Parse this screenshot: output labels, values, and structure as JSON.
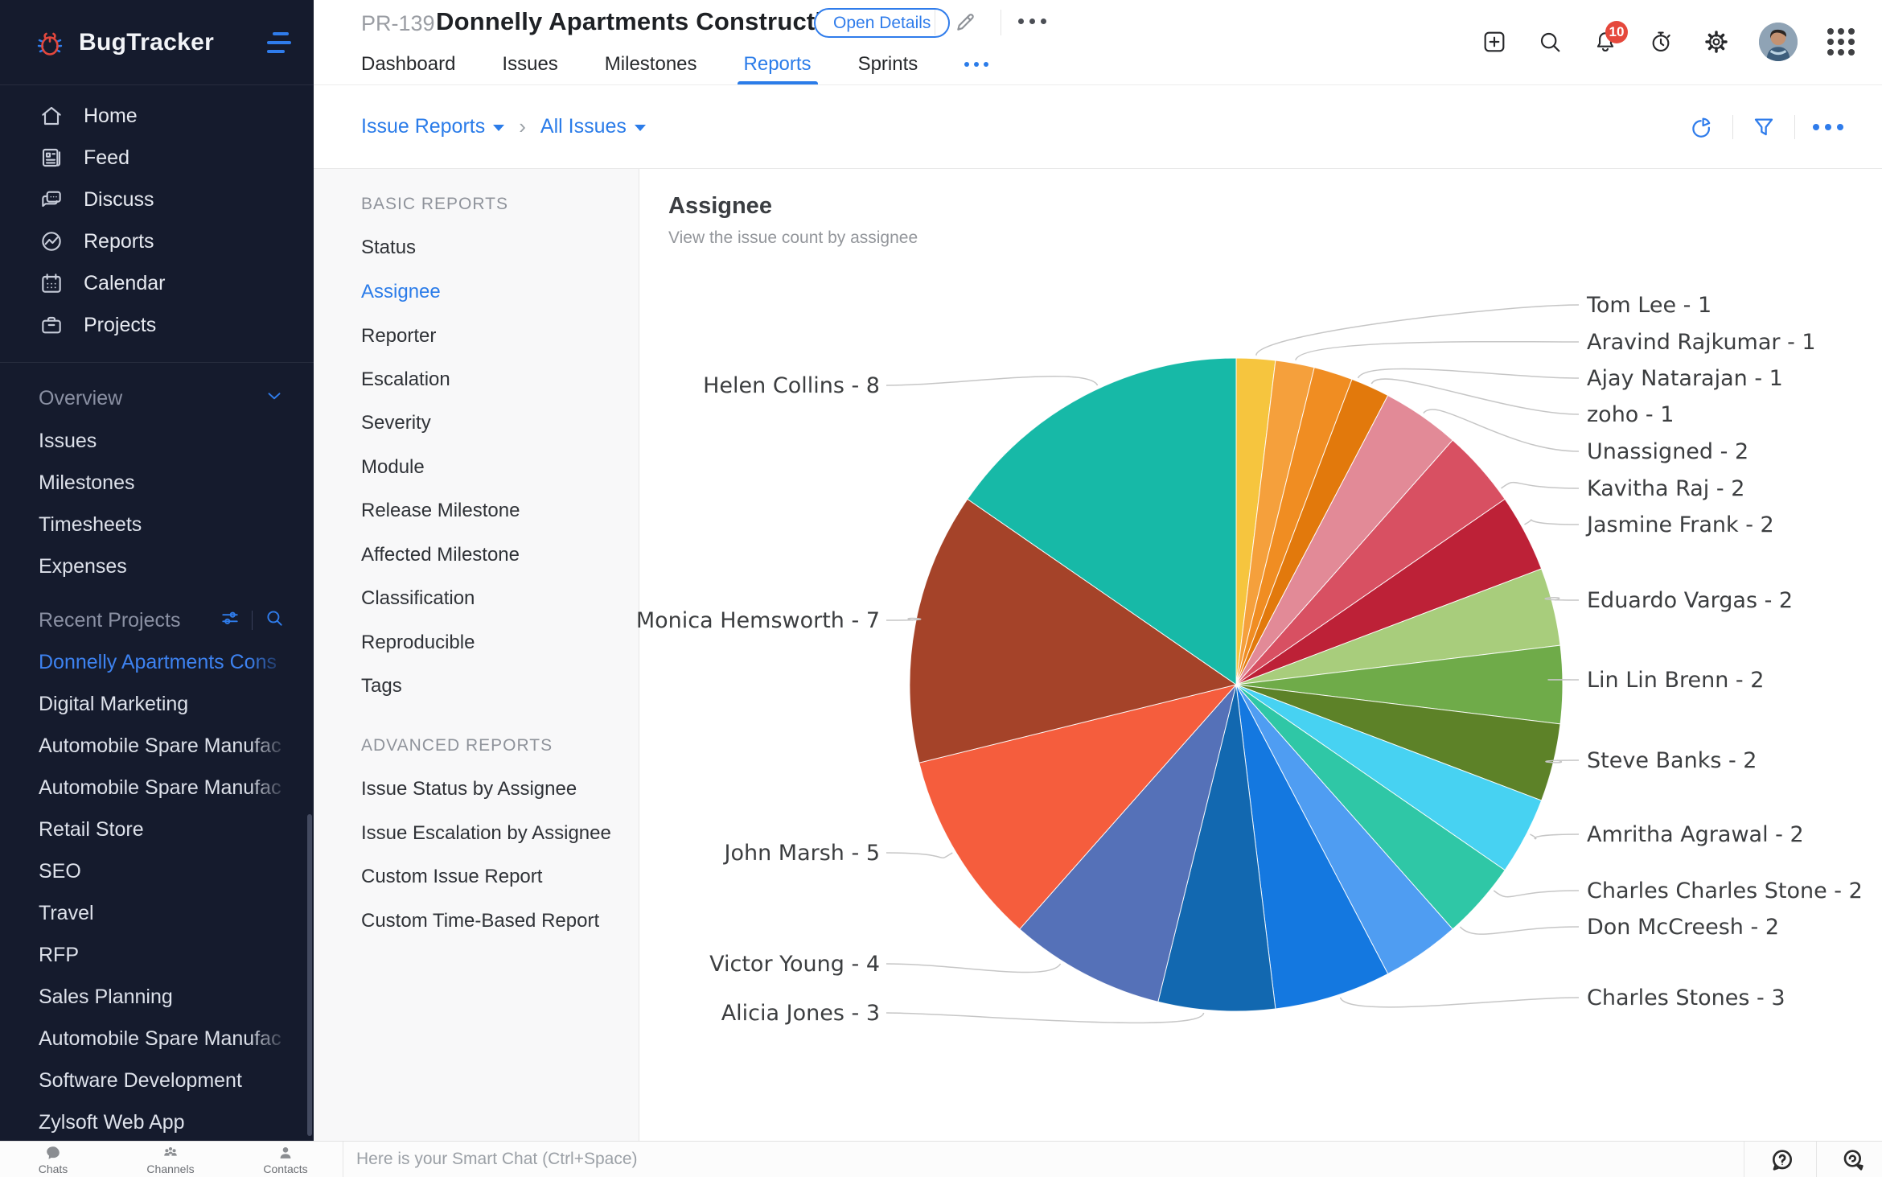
{
  "app": {
    "name": "BugTracker"
  },
  "sidebar": {
    "nav": [
      {
        "label": "Home"
      },
      {
        "label": "Feed"
      },
      {
        "label": "Discuss"
      },
      {
        "label": "Reports"
      },
      {
        "label": "Calendar"
      },
      {
        "label": "Projects"
      }
    ],
    "overview": {
      "label": "Overview",
      "items": [
        {
          "label": "Issues"
        },
        {
          "label": "Milestones"
        },
        {
          "label": "Timesheets"
        },
        {
          "label": "Expenses"
        }
      ]
    },
    "recent_projects": {
      "label": "Recent Projects",
      "items": [
        {
          "label": "Donnelly Apartments Cons"
        },
        {
          "label": "Digital Marketing"
        },
        {
          "label": "Automobile Spare Manufac"
        },
        {
          "label": "Automobile Spare Manufac"
        },
        {
          "label": "Retail Store"
        },
        {
          "label": "SEO"
        },
        {
          "label": "Travel"
        },
        {
          "label": "RFP"
        },
        {
          "label": "Sales Planning"
        },
        {
          "label": "Automobile Spare Manufac"
        },
        {
          "label": "Software Development"
        },
        {
          "label": "Zylsoft Web App"
        }
      ]
    }
  },
  "header": {
    "project_id": "PR-139",
    "project_title": "Donnelly Apartments Constructic",
    "open_details_label": "Open Details",
    "notification_count": "10",
    "tabs": [
      {
        "label": "Dashboard"
      },
      {
        "label": "Issues"
      },
      {
        "label": "Milestones"
      },
      {
        "label": "Reports"
      },
      {
        "label": "Sprints"
      }
    ]
  },
  "breadcrumb": {
    "level1": "Issue Reports",
    "level2": "All Issues"
  },
  "reports_panel": {
    "basic_header": "BASIC REPORTS",
    "basic_items": [
      {
        "label": "Status"
      },
      {
        "label": "Assignee"
      },
      {
        "label": "Reporter"
      },
      {
        "label": "Escalation"
      },
      {
        "label": "Severity"
      },
      {
        "label": "Module"
      },
      {
        "label": "Release Milestone"
      },
      {
        "label": "Affected Milestone"
      },
      {
        "label": "Classification"
      },
      {
        "label": "Reproducible"
      },
      {
        "label": "Tags"
      }
    ],
    "advanced_header": "ADVANCED REPORTS",
    "advanced_items": [
      {
        "label": "Issue Status by Assignee"
      },
      {
        "label": "Issue Escalation by Assignee"
      },
      {
        "label": "Custom Issue Report"
      },
      {
        "label": "Custom Time-Based Report"
      }
    ]
  },
  "main": {
    "title": "Assignee",
    "subtitle": "View the issue count by assignee"
  },
  "chat_bar": {
    "placeholder": "Here is your Smart Chat (Ctrl+Space)",
    "tools": [
      {
        "label": "Chats"
      },
      {
        "label": "Channels"
      },
      {
        "label": "Contacts"
      }
    ]
  },
  "colors": {
    "accent_blue": "#2f7ceb",
    "badge_red": "#e5483c",
    "sidebar_bg": "#151b2d"
  },
  "chart_data": {
    "type": "pie",
    "title": "Assignee",
    "label_format": "{name} - {value}",
    "legend_position": "none",
    "series": [
      {
        "name": "Tom Lee",
        "value": 1,
        "color": "#f6c53e"
      },
      {
        "name": "Aravind Rajkumar",
        "value": 1,
        "color": "#f5a03c"
      },
      {
        "name": "Ajay Natarajan",
        "value": 1,
        "color": "#f08d22"
      },
      {
        "name": "zoho",
        "value": 1,
        "color": "#e2790c"
      },
      {
        "name": "Unassigned",
        "value": 2,
        "color": "#e28a97"
      },
      {
        "name": "Kavitha Raj",
        "value": 2,
        "color": "#d85062"
      },
      {
        "name": "Jasmine Frank",
        "value": 2,
        "color": "#bd2137"
      },
      {
        "name": "Eduardo Vargas",
        "value": 2,
        "color": "#a8cd7c"
      },
      {
        "name": "Lin Lin Brenn",
        "value": 2,
        "color": "#6fab49"
      },
      {
        "name": "Steve Banks",
        "value": 2,
        "color": "#5d8228"
      },
      {
        "name": "Amritha Agrawal",
        "value": 2,
        "color": "#47d2f2"
      },
      {
        "name": "Charles Charles Stone",
        "value": 2,
        "color": "#2fc7a6"
      },
      {
        "name": "Don McCreesh",
        "value": 2,
        "color": "#4f9df2"
      },
      {
        "name": "Charles Stones",
        "value": 3,
        "color": "#1478e0"
      },
      {
        "name": "Alicia Jones",
        "value": 3,
        "color": "#1268b0"
      },
      {
        "name": "Victor Young",
        "value": 4,
        "color": "#5571b8"
      },
      {
        "name": "John Marsh",
        "value": 5,
        "color": "#f55d3d"
      },
      {
        "name": "Monica Hemsworth",
        "value": 7,
        "color": "#a54329"
      },
      {
        "name": "Helen Collins",
        "value": 8,
        "color": "#17b9a7"
      }
    ]
  }
}
